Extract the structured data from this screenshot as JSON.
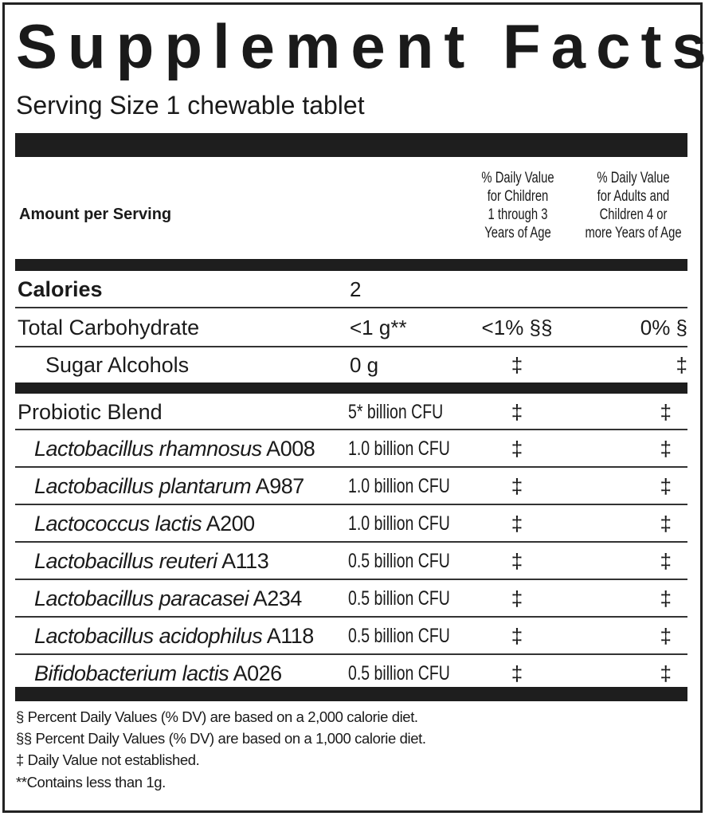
{
  "title": "Supplement Facts",
  "serving_size": "Serving Size 1 chewable tablet",
  "header": {
    "amount": "Amount per Serving",
    "dv_children": [
      "% Daily Value",
      "for Children",
      "1 through 3",
      "Years of Age"
    ],
    "dv_adults": [
      "% Daily Value",
      "for Adults and",
      "Children 4 or",
      "more Years of Age"
    ]
  },
  "rows": [
    {
      "name": "Calories",
      "amount": "2",
      "dv1": "",
      "dv2": ""
    },
    {
      "name": "Total Carbohydrate",
      "amount": "<1 g**",
      "dv1": "<1% §§",
      "dv2": "0% §"
    },
    {
      "name": "Sugar Alcohols",
      "amount": "0 g",
      "dv1": "‡",
      "dv2": "‡"
    }
  ],
  "probiotics": [
    {
      "name": "Probiotic Blend",
      "strain": "",
      "amount": "5* billion CFU",
      "dv1": "‡",
      "dv2": "‡"
    },
    {
      "name": "Lactobacillus rhamnosus",
      "strain": " A008",
      "amount": "1.0 billion CFU",
      "dv1": "‡",
      "dv2": "‡"
    },
    {
      "name": "Lactobacillus plantarum",
      "strain": " A987",
      "amount": "1.0 billion CFU",
      "dv1": "‡",
      "dv2": "‡"
    },
    {
      "name": "Lactococcus lactis",
      "strain": " A200",
      "amount": "1.0  billion CFU",
      "dv1": "‡",
      "dv2": "‡"
    },
    {
      "name": "Lactobacillus reuteri",
      "strain": " A113",
      "amount": "0.5 billion CFU",
      "dv1": "‡",
      "dv2": "‡"
    },
    {
      "name": "Lactobacillus paracasei",
      "strain": " A234",
      "amount": "0.5 billion CFU",
      "dv1": "‡",
      "dv2": "‡"
    },
    {
      "name": "Lactobacillus acidophilus",
      "strain": " A118",
      "amount": "0.5  billion CFU",
      "dv1": "‡",
      "dv2": "‡"
    },
    {
      "name": "Bifidobacterium lactis",
      "strain": " A026",
      "amount": "0.5 billion CFU",
      "dv1": "‡",
      "dv2": "‡"
    }
  ],
  "footnotes": [
    "§ Percent Daily Values (% DV) are based on a 2,000 calorie diet.",
    "§§ Percent Daily Values (% DV) are based on a 1,000 calorie diet.",
    "‡ Daily Value not established.",
    "**Contains less than 1g."
  ]
}
